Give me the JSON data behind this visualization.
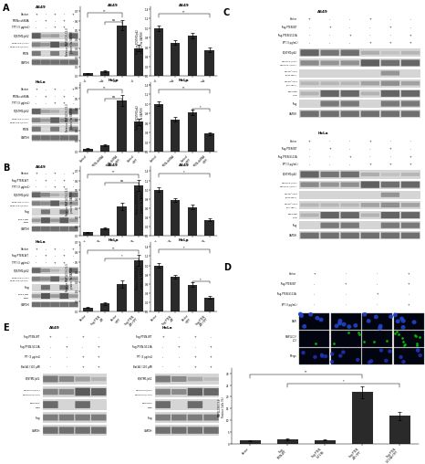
{
  "background_color": "#ffffff",
  "panel_labels": [
    "A",
    "B",
    "C",
    "D",
    "E"
  ],
  "bar_color": "#2a2a2a",
  "wb_bg": "#c8c8c8",
  "wb_band_dark": "#1a1a1a",
  "wb_band_mid": "#555555",
  "wb_band_light": "#999999",
  "outer_border": "#aaaaaa"
}
